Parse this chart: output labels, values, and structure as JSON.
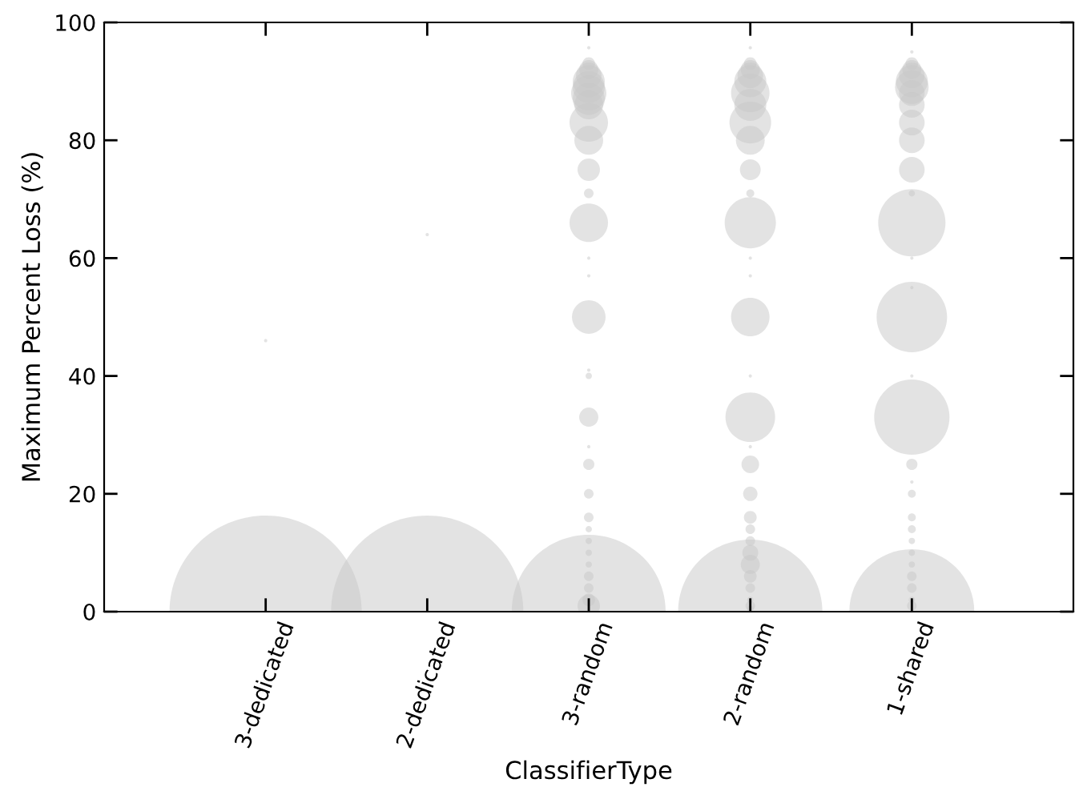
{
  "chart_data": {
    "type": "bubble",
    "xlabel": "ClassifierType",
    "ylabel": "Maximum Percent Loss (%)",
    "categories": [
      "3-dedicated",
      "2-dedicated",
      "3-random",
      "2-random",
      "1-shared"
    ],
    "ylim": [
      0,
      100
    ],
    "yticks": [
      0,
      20,
      40,
      60,
      80,
      100
    ],
    "grid": false,
    "series": [
      {
        "color": "#c8c8c8",
        "x": [
          "3-dedicated",
          "3-dedicated"
        ],
        "values": [
          0,
          46
        ],
        "sizes": [
          1,
          0.0003
        ]
      },
      {
        "color": "#c8c8c8",
        "x": [
          "2-dedicated",
          "2-dedicated"
        ],
        "values": [
          0,
          64
        ],
        "sizes": [
          1,
          0.0003
        ]
      },
      {
        "color": "#c8c8c8",
        "x": [
          "3-random",
          "3-random",
          "3-random",
          "3-random",
          "3-random",
          "3-random",
          "3-random",
          "3-random",
          "3-random",
          "3-random",
          "3-random",
          "3-random",
          "3-random",
          "3-random",
          "3-random",
          "3-random",
          "3-random",
          "3-random",
          "3-random",
          "3-random",
          "3-random",
          "3-random",
          "3-random",
          "3-random",
          "3-random",
          "3-random",
          "3-random",
          "3-random",
          "3-random",
          "3-random",
          "3-random",
          "3-random",
          "3-random"
        ],
        "values": [
          95.7,
          93,
          92,
          91,
          90,
          89,
          88,
          87,
          86,
          83,
          80,
          75,
          71,
          66,
          60,
          57,
          50,
          41,
          40,
          33,
          28,
          25,
          20,
          16,
          14,
          12,
          10,
          8,
          6,
          4,
          2,
          1,
          0
        ],
        "sizes": [
          0.0003,
          0.0044,
          0.01,
          0.0178,
          0.0278,
          0.0278,
          0.0336,
          0.0278,
          0.0225,
          0.04,
          0.0225,
          0.0136,
          0.0025,
          0.04,
          0.0003,
          0.0003,
          0.0306,
          0.0003,
          0.0011,
          0.01,
          0.0003,
          0.0034,
          0.0025,
          0.0025,
          0.0011,
          0.0011,
          0.0011,
          0.0011,
          0.0025,
          0.0025,
          0.0044,
          0.0136,
          0.64
        ]
      },
      {
        "color": "#c8c8c8",
        "x": [
          "2-random",
          "2-random",
          "2-random",
          "2-random",
          "2-random",
          "2-random",
          "2-random",
          "2-random",
          "2-random",
          "2-random",
          "2-random",
          "2-random",
          "2-random",
          "2-random",
          "2-random",
          "2-random",
          "2-random",
          "2-random",
          "2-random",
          "2-random",
          "2-random",
          "2-random",
          "2-random",
          "2-random",
          "2-random",
          "2-random",
          "2-random",
          "2-random",
          "2-random",
          "2-random",
          "2-random"
        ],
        "values": [
          95.7,
          93,
          92,
          91,
          90,
          88,
          86,
          83,
          80,
          75,
          71,
          66,
          60,
          57,
          50,
          40,
          33,
          28,
          25,
          20,
          16,
          14,
          12,
          10,
          8,
          6,
          4,
          2,
          1,
          0,
          0.5
        ],
        "sizes": [
          0.0003,
          0.0044,
          0.01,
          0.0178,
          0.0278,
          0.04,
          0.0278,
          0.047,
          0.0225,
          0.0117,
          0.0017,
          0.071,
          0.0003,
          0.0003,
          0.04,
          0.0003,
          0.0667,
          0.0003,
          0.0084,
          0.0056,
          0.0044,
          0.0025,
          0.0025,
          0.0069,
          0.01,
          0.0044,
          0.0025,
          0.0011,
          0.0025,
          0.5625,
          0.0011
        ]
      },
      {
        "color": "#c8c8c8",
        "x": [
          "1-shared",
          "1-shared",
          "1-shared",
          "1-shared",
          "1-shared",
          "1-shared",
          "1-shared",
          "1-shared",
          "1-shared",
          "1-shared",
          "1-shared",
          "1-shared",
          "1-shared",
          "1-shared",
          "1-shared",
          "1-shared",
          "1-shared",
          "1-shared",
          "1-shared",
          "1-shared",
          "1-shared",
          "1-shared",
          "1-shared",
          "1-shared",
          "1-shared",
          "1-shared",
          "1-shared",
          "1-shared",
          "1-shared",
          "1-shared",
          "1-shared"
        ],
        "values": [
          95,
          93,
          92,
          91,
          90,
          89,
          88,
          86,
          83,
          80,
          75,
          71,
          66,
          60,
          55,
          50,
          40,
          33,
          25,
          22,
          20,
          16,
          14,
          12,
          10,
          8,
          6,
          4,
          2,
          1,
          0
        ],
        "sizes": [
          0.0003,
          0.0044,
          0.01,
          0.0178,
          0.0278,
          0.0306,
          0.0178,
          0.0178,
          0.0178,
          0.0178,
          0.0178,
          0.0011,
          0.1225,
          0.0003,
          0.0003,
          0.1344,
          0.0003,
          0.1534,
          0.0034,
          0.0003,
          0.0017,
          0.0017,
          0.0017,
          0.0011,
          0.0011,
          0.0011,
          0.0025,
          0.0025,
          0.0011,
          0.0025,
          0.4225
        ]
      }
    ]
  }
}
